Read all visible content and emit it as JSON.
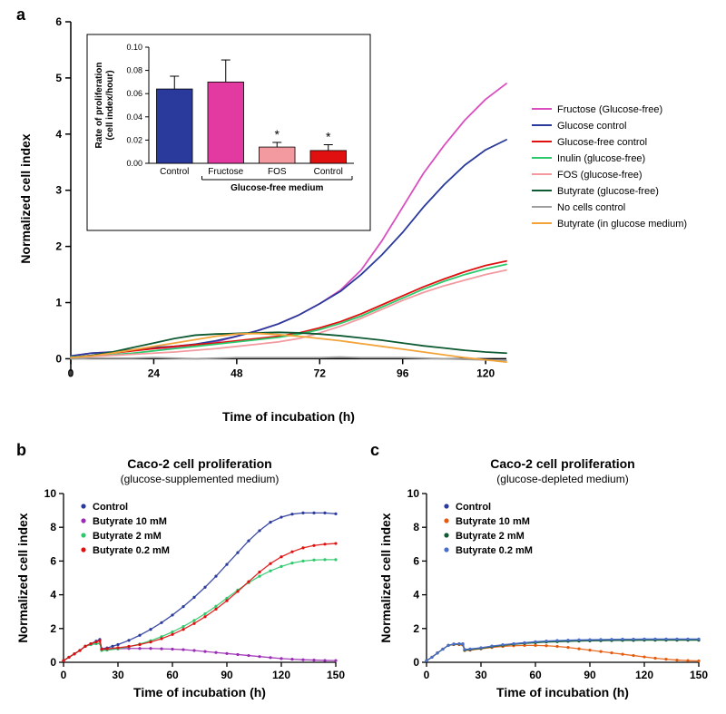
{
  "panelA": {
    "label": "a",
    "type": "line",
    "xlabel": "Time of incubation (h)",
    "ylabel": "Normalized cell index",
    "xlim": [
      0,
      126
    ],
    "ylim": [
      -0.3,
      6
    ],
    "xticks": [
      0,
      24,
      48,
      72,
      96,
      120
    ],
    "yticks": [
      0,
      1,
      2,
      3,
      4,
      5,
      6
    ],
    "tick_fontsize": 12,
    "axis_title_fontsize": 14,
    "line_width": 1.8,
    "background_color": "#ffffff",
    "legend": {
      "position_right": true,
      "items": [
        {
          "label": "Fructose (Glucose-free)",
          "color": "#d94fbf"
        },
        {
          "label": "Glucose control",
          "color": "#2a3a9c"
        },
        {
          "label": "Glucose-free control",
          "color": "#e01010"
        },
        {
          "label": "Inulin (glucose-free)",
          "color": "#2fc96d"
        },
        {
          "label": "FOS (glucose-free)",
          "color": "#f29aa0"
        },
        {
          "label": "Butyrate (glucose-free)",
          "color": "#0e5a32"
        },
        {
          "label": "No cells control",
          "color": "#9e9e9e"
        },
        {
          "label": "Butyrate (in glucose medium)",
          "color": "#f2a43a"
        }
      ]
    },
    "series": [
      {
        "name": "Fructose (Glucose-free)",
        "color": "#d94fbf",
        "x": [
          0,
          6,
          12,
          18,
          24,
          30,
          36,
          42,
          48,
          54,
          60,
          66,
          72,
          78,
          84,
          90,
          96,
          102,
          108,
          114,
          120,
          126
        ],
        "y": [
          0.05,
          0.1,
          0.12,
          0.15,
          0.18,
          0.2,
          0.25,
          0.3,
          0.4,
          0.5,
          0.62,
          0.78,
          0.98,
          1.22,
          1.58,
          2.1,
          2.7,
          3.3,
          3.8,
          4.25,
          4.62,
          4.9
        ]
      },
      {
        "name": "Glucose control",
        "color": "#2a3a9c",
        "x": [
          0,
          6,
          12,
          18,
          24,
          30,
          36,
          42,
          48,
          54,
          60,
          66,
          72,
          78,
          84,
          90,
          96,
          102,
          108,
          114,
          120,
          126
        ],
        "y": [
          0.05,
          0.1,
          0.12,
          0.16,
          0.2,
          0.22,
          0.26,
          0.32,
          0.4,
          0.5,
          0.62,
          0.78,
          0.98,
          1.2,
          1.5,
          1.85,
          2.25,
          2.7,
          3.1,
          3.45,
          3.72,
          3.9
        ]
      },
      {
        "name": "Glucose-free control",
        "color": "#e01010",
        "x": [
          0,
          6,
          12,
          18,
          24,
          30,
          36,
          42,
          48,
          54,
          60,
          66,
          72,
          78,
          84,
          90,
          96,
          102,
          108,
          114,
          120,
          126
        ],
        "y": [
          0.02,
          0.06,
          0.1,
          0.14,
          0.18,
          0.22,
          0.25,
          0.28,
          0.32,
          0.36,
          0.4,
          0.46,
          0.55,
          0.66,
          0.8,
          0.96,
          1.12,
          1.28,
          1.42,
          1.55,
          1.66,
          1.74
        ]
      },
      {
        "name": "Inulin (glucose-free)",
        "color": "#2fc96d",
        "x": [
          0,
          6,
          12,
          18,
          24,
          30,
          36,
          42,
          48,
          54,
          60,
          66,
          72,
          78,
          84,
          90,
          96,
          102,
          108,
          114,
          120,
          126
        ],
        "y": [
          0.03,
          0.05,
          0.07,
          0.1,
          0.14,
          0.18,
          0.22,
          0.26,
          0.3,
          0.34,
          0.38,
          0.44,
          0.52,
          0.63,
          0.76,
          0.92,
          1.08,
          1.24,
          1.38,
          1.5,
          1.6,
          1.68
        ]
      },
      {
        "name": "FOS (glucose-free)",
        "color": "#f29aa0",
        "x": [
          0,
          6,
          12,
          18,
          24,
          30,
          36,
          42,
          48,
          54,
          60,
          66,
          72,
          78,
          84,
          90,
          96,
          102,
          108,
          114,
          120,
          126
        ],
        "y": [
          0.02,
          0.04,
          0.06,
          0.08,
          0.1,
          0.12,
          0.15,
          0.18,
          0.22,
          0.26,
          0.3,
          0.36,
          0.46,
          0.58,
          0.72,
          0.88,
          1.04,
          1.18,
          1.3,
          1.4,
          1.5,
          1.58
        ]
      },
      {
        "name": "Butyrate (glucose-free)",
        "color": "#0e5a32",
        "x": [
          0,
          6,
          12,
          18,
          24,
          30,
          36,
          42,
          48,
          54,
          60,
          66,
          72,
          78,
          84,
          90,
          96,
          102,
          108,
          114,
          120,
          126
        ],
        "y": [
          0.02,
          0.06,
          0.12,
          0.2,
          0.28,
          0.36,
          0.42,
          0.44,
          0.45,
          0.46,
          0.47,
          0.46,
          0.44,
          0.41,
          0.37,
          0.33,
          0.28,
          0.23,
          0.19,
          0.15,
          0.12,
          0.1
        ]
      },
      {
        "name": "No cells control",
        "color": "#9e9e9e",
        "x": [
          0,
          6,
          12,
          18,
          24,
          30,
          36,
          42,
          48,
          54,
          60,
          66,
          72,
          78,
          84,
          90,
          96,
          102,
          108,
          114,
          120,
          126
        ],
        "y": [
          0.0,
          0.01,
          0.01,
          0.01,
          0.02,
          0.01,
          0.0,
          0.01,
          0.02,
          0.02,
          0.02,
          0.02,
          0.02,
          0.03,
          0.02,
          0.02,
          0.02,
          0.01,
          0.0,
          -0.01,
          -0.02,
          -0.03
        ]
      },
      {
        "name": "Butyrate (in glucose medium)",
        "color": "#f2a43a",
        "x": [
          0,
          6,
          12,
          18,
          24,
          30,
          36,
          42,
          48,
          54,
          60,
          66,
          72,
          78,
          84,
          90,
          96,
          102,
          108,
          114,
          120,
          126
        ],
        "y": [
          0.02,
          0.05,
          0.1,
          0.16,
          0.22,
          0.28,
          0.34,
          0.4,
          0.44,
          0.45,
          0.43,
          0.4,
          0.36,
          0.32,
          0.27,
          0.22,
          0.17,
          0.12,
          0.07,
          0.02,
          -0.02,
          -0.06
        ]
      }
    ],
    "inset": {
      "type": "bar",
      "ylabel_line1": "Rate of proliferation",
      "ylabel_line2": "(cell index/hour)",
      "ylim": [
        0.0,
        0.1
      ],
      "yticks": [
        0.0,
        0.02,
        0.04,
        0.06,
        0.08,
        0.1
      ],
      "group_label": "Glucose-free medium",
      "bars": [
        {
          "label": "Control",
          "value": 0.064,
          "error": 0.011,
          "color": "#2a3a9c",
          "sig": ""
        },
        {
          "label": "Fructose",
          "value": 0.07,
          "error": 0.019,
          "color": "#e23aa0",
          "sig": ""
        },
        {
          "label": "FOS",
          "value": 0.014,
          "error": 0.004,
          "color": "#f29aa0",
          "sig": "*"
        },
        {
          "label": "Control",
          "value": 0.011,
          "error": 0.005,
          "color": "#e01010",
          "sig": "*"
        }
      ],
      "bar_width": 0.7
    }
  },
  "panelB": {
    "label": "b",
    "type": "scatter-line",
    "title": "Caco-2 cell proliferation",
    "subtitle": "(glucose-supplemented medium)",
    "xlabel": "Time of incubation (h)",
    "ylabel": "Normalized cell index",
    "xlim": [
      0,
      150
    ],
    "ylim": [
      0,
      10
    ],
    "xticks": [
      0,
      30,
      60,
      90,
      120,
      150
    ],
    "yticks": [
      0,
      2,
      4,
      6,
      8,
      10
    ],
    "marker_size": 1.6,
    "legend": [
      {
        "label": "Control",
        "color": "#2a3a9c"
      },
      {
        "label": "Butyrate 10 mM",
        "color": "#9b2bb5"
      },
      {
        "label": "Butyrate 2 mM",
        "color": "#2fc96d"
      },
      {
        "label": "Butyrate 0.2 mM",
        "color": "#e01010"
      }
    ],
    "series": [
      {
        "name": "Control",
        "color": "#2a3a9c",
        "x": [
          0,
          3,
          6,
          9,
          12,
          15,
          18,
          20,
          21,
          24,
          27,
          30,
          36,
          42,
          48,
          54,
          60,
          66,
          72,
          78,
          84,
          90,
          96,
          102,
          108,
          114,
          120,
          126,
          132,
          138,
          144,
          150
        ],
        "y": [
          0.1,
          0.3,
          0.5,
          0.7,
          0.95,
          1.1,
          1.25,
          1.35,
          0.8,
          0.85,
          0.95,
          1.05,
          1.3,
          1.6,
          1.95,
          2.35,
          2.8,
          3.3,
          3.85,
          4.45,
          5.1,
          5.8,
          6.5,
          7.2,
          7.8,
          8.3,
          8.6,
          8.78,
          8.85,
          8.85,
          8.85,
          8.8
        ]
      },
      {
        "name": "Butyrate 10 mM",
        "color": "#9b2bb5",
        "x": [
          0,
          3,
          6,
          9,
          12,
          15,
          18,
          20,
          21,
          24,
          30,
          36,
          42,
          48,
          54,
          60,
          66,
          72,
          78,
          84,
          90,
          96,
          102,
          108,
          114,
          120,
          126,
          132,
          138,
          144,
          150
        ],
        "y": [
          0.1,
          0.3,
          0.5,
          0.7,
          0.95,
          1.05,
          1.1,
          1.12,
          0.75,
          0.75,
          0.8,
          0.82,
          0.82,
          0.82,
          0.8,
          0.78,
          0.75,
          0.7,
          0.64,
          0.58,
          0.52,
          0.46,
          0.4,
          0.34,
          0.28,
          0.22,
          0.18,
          0.15,
          0.13,
          0.11,
          0.1
        ]
      },
      {
        "name": "Butyrate 2 mM",
        "color": "#2fc96d",
        "x": [
          0,
          3,
          6,
          9,
          12,
          15,
          18,
          20,
          21,
          24,
          30,
          36,
          42,
          48,
          54,
          60,
          66,
          72,
          78,
          84,
          90,
          96,
          102,
          108,
          114,
          120,
          126,
          132,
          138,
          144,
          150
        ],
        "y": [
          0.1,
          0.3,
          0.5,
          0.7,
          0.95,
          1.05,
          1.1,
          1.12,
          0.7,
          0.72,
          0.8,
          0.92,
          1.08,
          1.28,
          1.52,
          1.8,
          2.12,
          2.48,
          2.88,
          3.32,
          3.8,
          4.28,
          4.72,
          5.1,
          5.42,
          5.68,
          5.88,
          6.0,
          6.06,
          6.08,
          6.08
        ]
      },
      {
        "name": "Butyrate 0.2 mM",
        "color": "#e01010",
        "x": [
          0,
          3,
          6,
          9,
          12,
          15,
          18,
          20,
          21,
          24,
          30,
          36,
          42,
          48,
          54,
          60,
          66,
          72,
          78,
          84,
          90,
          96,
          102,
          108,
          114,
          120,
          126,
          132,
          138,
          144,
          150
        ],
        "y": [
          0.1,
          0.3,
          0.5,
          0.7,
          0.95,
          1.1,
          1.2,
          1.28,
          0.78,
          0.8,
          0.86,
          0.94,
          1.05,
          1.2,
          1.4,
          1.65,
          1.95,
          2.3,
          2.7,
          3.15,
          3.65,
          4.2,
          4.78,
          5.35,
          5.85,
          6.25,
          6.55,
          6.78,
          6.92,
          7.0,
          7.04
        ]
      }
    ]
  },
  "panelC": {
    "label": "c",
    "type": "scatter-line",
    "title": "Caco-2 cell proliferation",
    "subtitle": "(glucose-depleted medium)",
    "xlabel": "Time of incubation (h)",
    "ylabel": "Normalized cell index",
    "xlim": [
      0,
      150
    ],
    "ylim": [
      0,
      10
    ],
    "xticks": [
      0,
      30,
      60,
      90,
      120,
      150
    ],
    "yticks": [
      0,
      2,
      4,
      6,
      8,
      10
    ],
    "marker_size": 1.6,
    "legend": [
      {
        "label": "Control",
        "color": "#2a3a9c"
      },
      {
        "label": "Butyrate 10 mM",
        "color": "#e65a0b"
      },
      {
        "label": "Butyrate 2 mM",
        "color": "#0e5a32"
      },
      {
        "label": "Butyrate 0.2 mM",
        "color": "#4b6ec9"
      }
    ],
    "series": [
      {
        "name": "Control",
        "color": "#2a3a9c",
        "x": [
          0,
          3,
          6,
          9,
          12,
          15,
          18,
          20,
          21,
          24,
          30,
          36,
          42,
          48,
          54,
          60,
          66,
          72,
          78,
          84,
          90,
          96,
          102,
          108,
          114,
          120,
          126,
          132,
          138,
          144,
          150
        ],
        "y": [
          0.1,
          0.3,
          0.55,
          0.78,
          1.0,
          1.08,
          1.1,
          1.1,
          0.75,
          0.78,
          0.85,
          0.95,
          1.02,
          1.1,
          1.16,
          1.2,
          1.24,
          1.26,
          1.28,
          1.3,
          1.31,
          1.32,
          1.33,
          1.34,
          1.34,
          1.35,
          1.35,
          1.36,
          1.36,
          1.36,
          1.36
        ]
      },
      {
        "name": "Butyrate 10 mM",
        "color": "#e65a0b",
        "x": [
          0,
          3,
          6,
          9,
          12,
          15,
          18,
          20,
          21,
          24,
          30,
          36,
          42,
          48,
          54,
          60,
          66,
          72,
          78,
          84,
          90,
          96,
          102,
          108,
          114,
          120,
          126,
          132,
          138,
          144,
          150
        ],
        "y": [
          0.1,
          0.3,
          0.55,
          0.78,
          1.0,
          1.05,
          1.05,
          1.02,
          0.7,
          0.72,
          0.8,
          0.88,
          0.94,
          0.98,
          1.0,
          1.0,
          0.98,
          0.94,
          0.88,
          0.8,
          0.72,
          0.64,
          0.56,
          0.48,
          0.4,
          0.32,
          0.24,
          0.18,
          0.13,
          0.1,
          0.08
        ]
      },
      {
        "name": "Butyrate 2 mM",
        "color": "#0e5a32",
        "x": [
          0,
          3,
          6,
          9,
          12,
          15,
          18,
          20,
          21,
          24,
          30,
          36,
          42,
          48,
          54,
          60,
          66,
          72,
          78,
          84,
          90,
          96,
          102,
          108,
          114,
          120,
          126,
          132,
          138,
          144,
          150
        ],
        "y": [
          0.1,
          0.3,
          0.55,
          0.78,
          1.0,
          1.06,
          1.08,
          1.06,
          0.72,
          0.75,
          0.82,
          0.92,
          1.0,
          1.06,
          1.12,
          1.16,
          1.2,
          1.22,
          1.24,
          1.26,
          1.27,
          1.28,
          1.29,
          1.3,
          1.3,
          1.31,
          1.31,
          1.31,
          1.31,
          1.31,
          1.31
        ]
      },
      {
        "name": "Butyrate 0.2 mM",
        "color": "#4b6ec9",
        "x": [
          0,
          3,
          6,
          9,
          12,
          15,
          18,
          20,
          21,
          24,
          30,
          36,
          42,
          48,
          54,
          60,
          66,
          72,
          78,
          84,
          90,
          96,
          102,
          108,
          114,
          120,
          126,
          132,
          138,
          144,
          150
        ],
        "y": [
          0.1,
          0.3,
          0.55,
          0.78,
          1.0,
          1.08,
          1.1,
          1.08,
          0.76,
          0.79,
          0.86,
          0.96,
          1.04,
          1.1,
          1.16,
          1.22,
          1.26,
          1.29,
          1.31,
          1.33,
          1.34,
          1.35,
          1.36,
          1.37,
          1.37,
          1.38,
          1.38,
          1.38,
          1.38,
          1.38,
          1.38
        ]
      }
    ]
  }
}
